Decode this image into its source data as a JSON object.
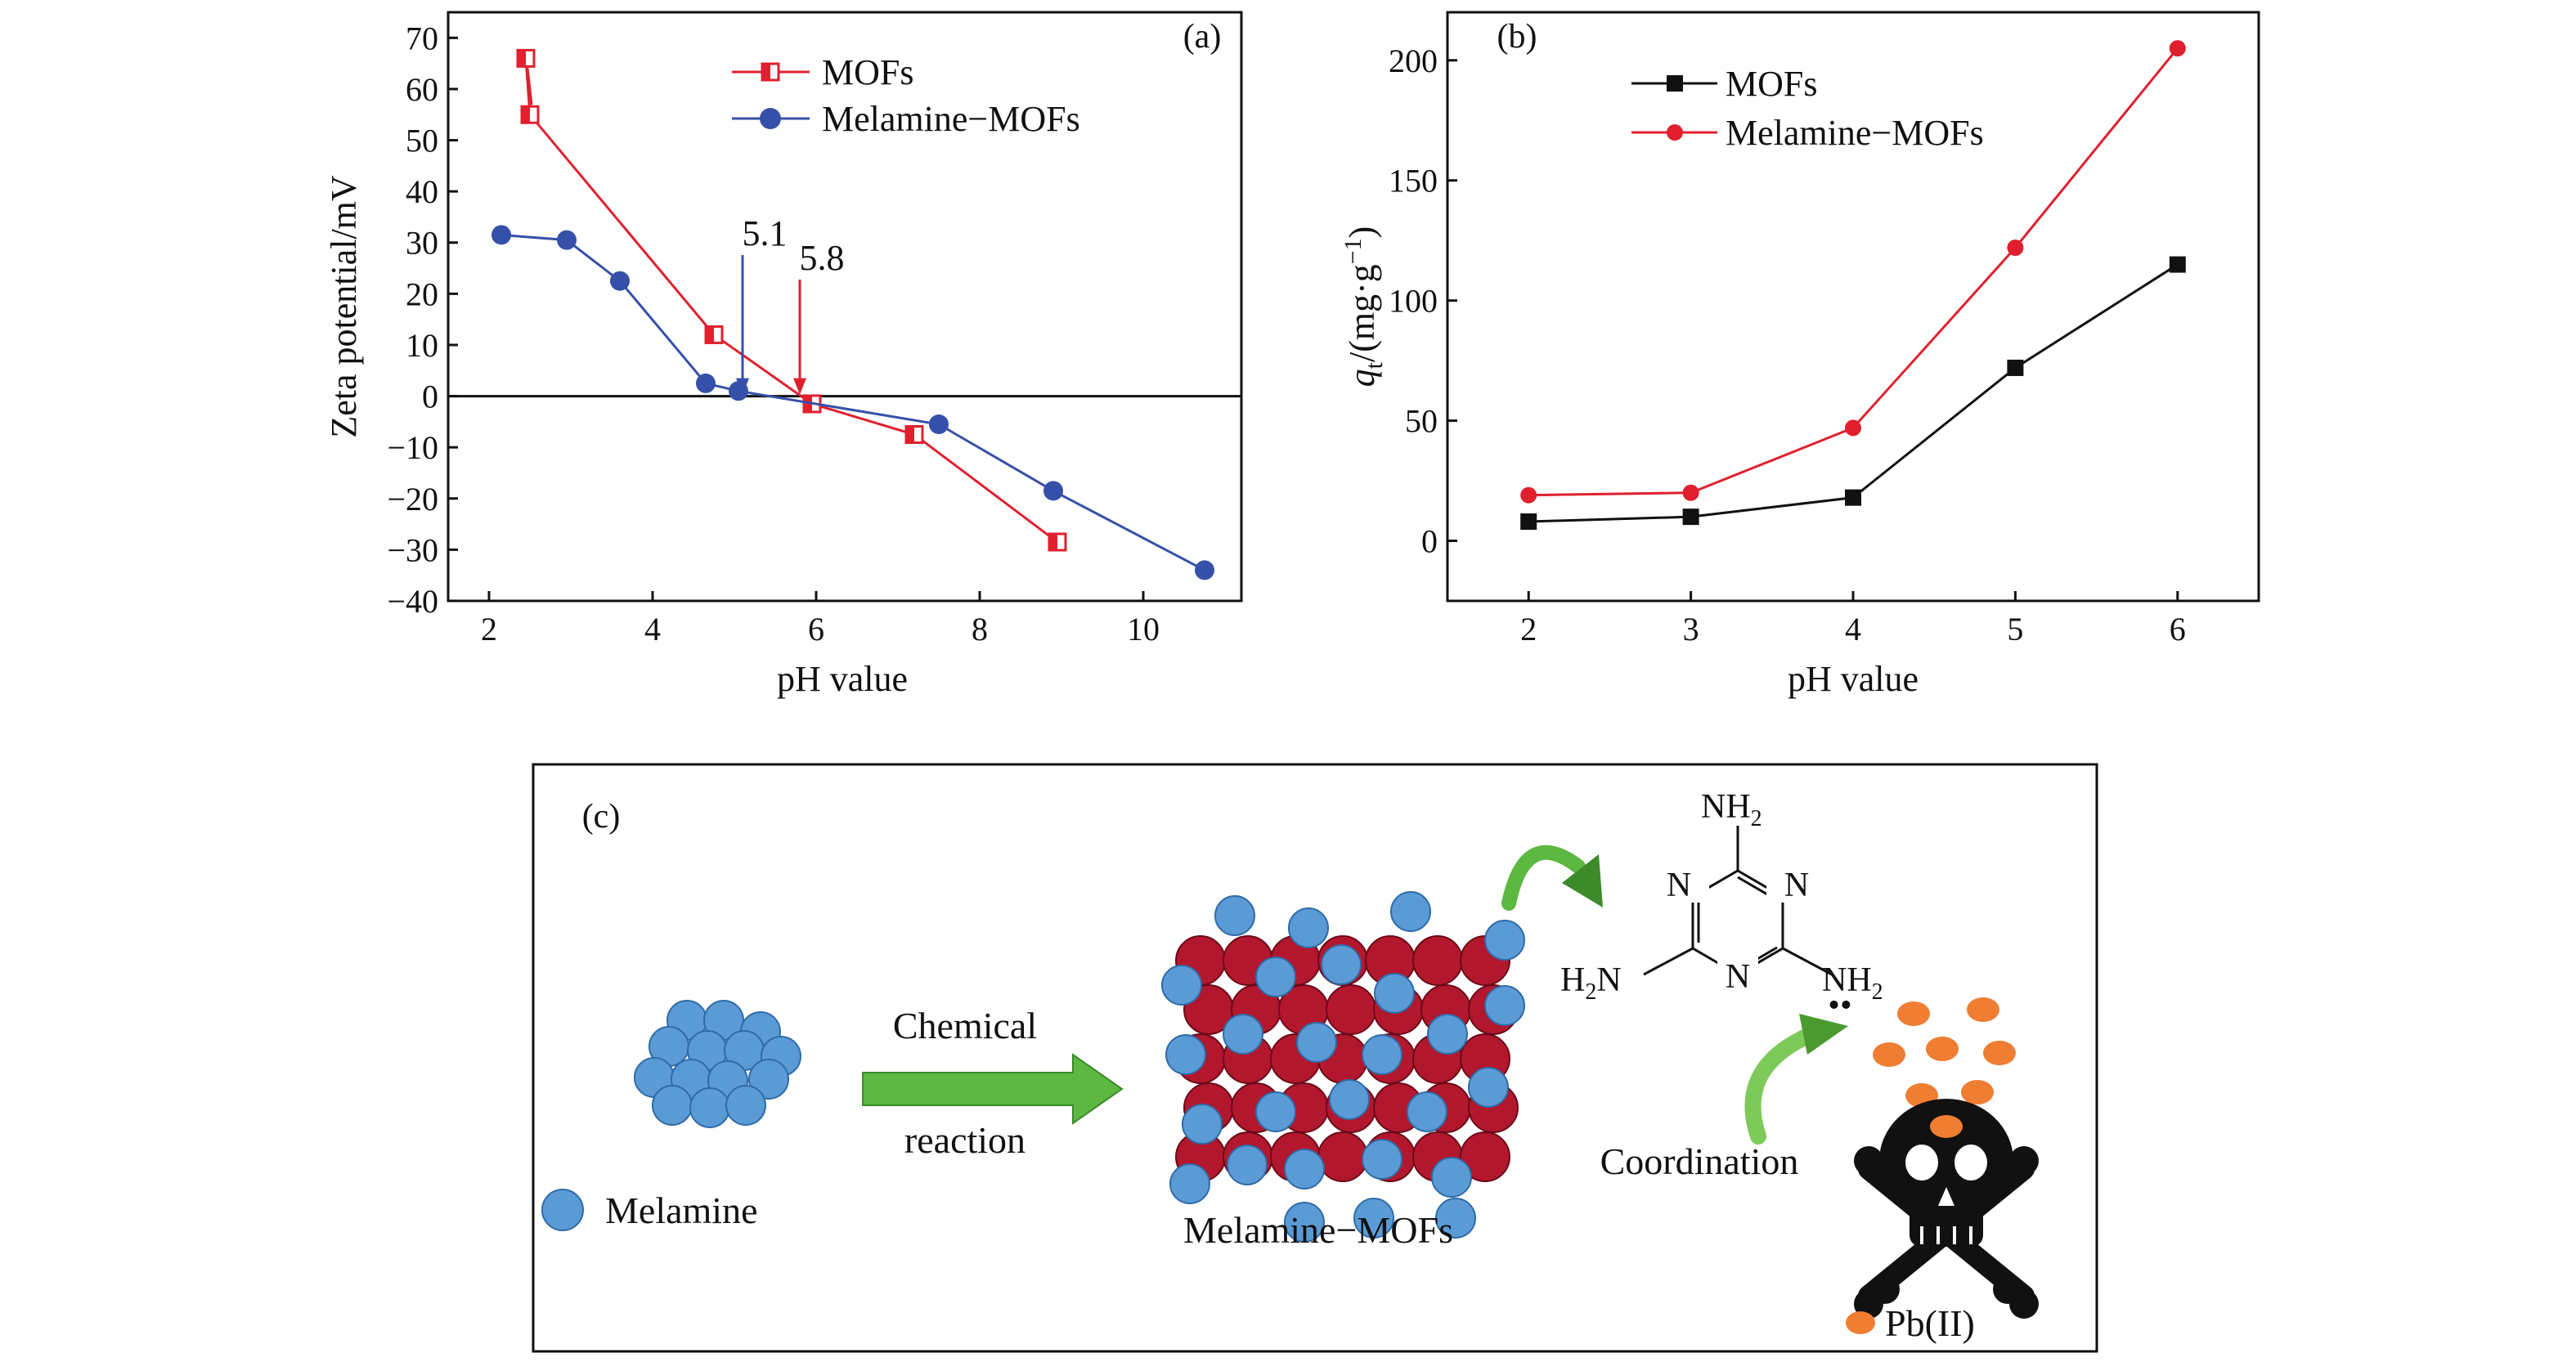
{
  "colors": {
    "red": "#e0202e",
    "blue": "#3550a8",
    "black": "#111111",
    "light_blue": "#5b9bd5",
    "dark_red": "#b3172d",
    "orange": "#ef7d32",
    "green": "#5cb840"
  },
  "chart_data": [
    {
      "panel": "(a)",
      "type": "line",
      "xlabel": "pH value",
      "ylabel": "Zeta potential/mV",
      "xlim": [
        1.5,
        11.2
      ],
      "ylim": [
        -40,
        75
      ],
      "xticks": [
        "2",
        "4",
        "6",
        "8",
        "10"
      ],
      "yticks": [
        "70",
        "60",
        "50",
        "40",
        "30",
        "20",
        "10",
        "0",
        "−10",
        "−20",
        "−30",
        "−40"
      ],
      "zero_line": true,
      "legend_position": "top-right",
      "series": [
        {
          "name": "MOFs",
          "color": "#e0202e",
          "marker": "half-filled-square",
          "x": [
            2.45,
            2.5,
            4.75,
            5.95,
            7.2,
            8.95
          ],
          "y": [
            66,
            55,
            12,
            -1.5,
            -7.5,
            -28.5
          ]
        },
        {
          "name": "Melamine−MOFs",
          "color": "#3550a8",
          "marker": "circle",
          "x": [
            2.15,
            2.95,
            3.6,
            4.65,
            5.05,
            7.5,
            8.9,
            10.75
          ],
          "y": [
            31.5,
            30.5,
            22.5,
            2.5,
            1,
            -5.5,
            -18.5,
            -34
          ]
        }
      ],
      "annotations": [
        {
          "text": "5.1",
          "x": 5.1,
          "color": "#3550a8"
        },
        {
          "text": "5.8",
          "x": 5.8,
          "color": "#e0202e"
        }
      ]
    },
    {
      "panel": "(b)",
      "type": "line",
      "xlabel": "pH value",
      "ylabel_italic": "q",
      "ylabel_sub": "t",
      "ylabel_unit": "/(mg·g",
      "ylabel_sup": "−1",
      "ylabel_close": ")",
      "xlim": [
        1.5,
        6.5
      ],
      "ylim": [
        -25,
        220
      ],
      "xticks": [
        "2",
        "3",
        "4",
        "5",
        "6"
      ],
      "yticks": [
        "200",
        "150",
        "100",
        "50",
        "0"
      ],
      "legend_position": "top-left",
      "series": [
        {
          "name": "MOFs",
          "color": "#111111",
          "marker": "square",
          "x": [
            2,
            3,
            4,
            5,
            6
          ],
          "y": [
            8,
            10,
            18,
            72,
            115
          ]
        },
        {
          "name": "Melamine−MOFs",
          "color": "#e0202e",
          "marker": "circle",
          "x": [
            2,
            3,
            4,
            5,
            6
          ],
          "y": [
            19,
            20,
            47,
            122,
            205
          ]
        }
      ]
    }
  ],
  "schematic": {
    "panel": "(c)",
    "arrow_label_top": "Chemical",
    "arrow_label_bottom": "reaction",
    "legend_melamine": "Melamine",
    "product_label": "Melamine−MOFs",
    "coordination_label": "Coordination",
    "legend_pb": "Pb(II)",
    "chem_N": "N",
    "chem_NH": "NH",
    "chem_H": "H",
    "chem_N_suffix": "N",
    "chem_sub2": "2",
    "lone_pair": "••"
  }
}
